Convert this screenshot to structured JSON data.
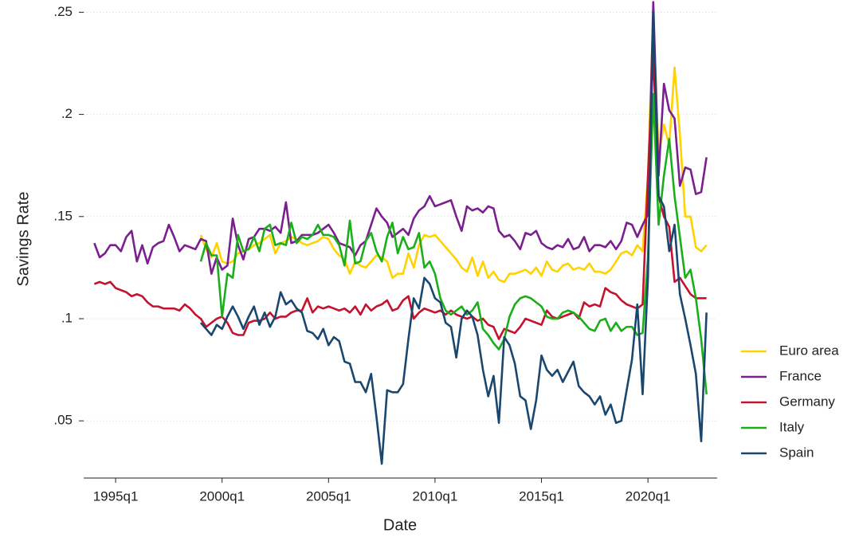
{
  "chart_data": {
    "type": "line",
    "y_label": "Savings Rate",
    "x_label": "Date",
    "x": [
      "1994q1",
      "1994q2",
      "1994q3",
      "1994q4",
      "1995q1",
      "1995q2",
      "1995q3",
      "1995q4",
      "1996q1",
      "1996q2",
      "1996q3",
      "1996q4",
      "1997q1",
      "1997q2",
      "1997q3",
      "1997q4",
      "1998q1",
      "1998q2",
      "1998q3",
      "1998q4",
      "1999q1",
      "1999q2",
      "1999q3",
      "1999q4",
      "2000q1",
      "2000q2",
      "2000q3",
      "2000q4",
      "2001q1",
      "2001q2",
      "2001q3",
      "2001q4",
      "2002q1",
      "2002q2",
      "2002q3",
      "2002q4",
      "2003q1",
      "2003q2",
      "2003q3",
      "2003q4",
      "2004q1",
      "2004q2",
      "2004q3",
      "2004q4",
      "2005q1",
      "2005q2",
      "2005q3",
      "2005q4",
      "2006q1",
      "2006q2",
      "2006q3",
      "2006q4",
      "2007q1",
      "2007q2",
      "2007q3",
      "2007q4",
      "2008q1",
      "2008q2",
      "2008q3",
      "2008q4",
      "2009q1",
      "2009q2",
      "2009q3",
      "2009q4",
      "2010q1",
      "2010q2",
      "2010q3",
      "2010q4",
      "2011q1",
      "2011q2",
      "2011q3",
      "2011q4",
      "2012q1",
      "2012q2",
      "2012q3",
      "2012q4",
      "2013q1",
      "2013q2",
      "2013q3",
      "2013q4",
      "2014q1",
      "2014q2",
      "2014q3",
      "2014q4",
      "2015q1",
      "2015q2",
      "2015q3",
      "2015q4",
      "2016q1",
      "2016q2",
      "2016q3",
      "2016q4",
      "2017q1",
      "2017q2",
      "2017q3",
      "2017q4",
      "2018q1",
      "2018q2",
      "2018q3",
      "2018q4",
      "2019q1",
      "2019q2",
      "2019q3",
      "2019q4",
      "2020q1",
      "2020q2",
      "2020q3",
      "2020q4",
      "2021q1",
      "2021q2",
      "2021q3",
      "2021q4",
      "2022q1",
      "2022q2",
      "2022q3",
      "2022q4"
    ],
    "series": [
      {
        "name": "Euro area",
        "color": "#ffd200",
        "values": [
          null,
          null,
          null,
          null,
          null,
          null,
          null,
          null,
          null,
          null,
          null,
          null,
          null,
          null,
          null,
          null,
          null,
          null,
          null,
          null,
          0.141,
          0.134,
          0.13,
          0.137,
          0.128,
          0.127,
          0.128,
          0.132,
          0.133,
          0.134,
          0.136,
          0.137,
          0.139,
          0.141,
          0.132,
          0.137,
          0.138,
          0.14,
          0.139,
          0.137,
          0.136,
          0.137,
          0.138,
          0.14,
          0.139,
          0.134,
          0.131,
          0.129,
          0.122,
          0.128,
          0.126,
          0.125,
          0.128,
          0.131,
          0.13,
          0.128,
          0.12,
          0.122,
          0.122,
          0.132,
          0.125,
          0.136,
          0.141,
          0.14,
          0.141,
          0.138,
          0.135,
          0.132,
          0.129,
          0.125,
          0.123,
          0.13,
          0.121,
          0.128,
          0.12,
          0.123,
          0.119,
          0.118,
          0.122,
          0.122,
          0.123,
          0.124,
          0.122,
          0.125,
          0.121,
          0.128,
          0.124,
          0.123,
          0.126,
          0.127,
          0.124,
          0.125,
          0.124,
          0.127,
          0.123,
          0.123,
          0.122,
          0.124,
          0.128,
          0.132,
          0.133,
          0.131,
          0.136,
          0.133,
          0.17,
          0.25,
          0.18,
          0.195,
          0.185,
          0.223,
          0.19,
          0.15,
          0.15,
          0.135,
          0.133,
          0.136
        ]
      },
      {
        "name": "France",
        "color": "#7b1e8e",
        "values": [
          0.137,
          0.13,
          0.132,
          0.136,
          0.136,
          0.133,
          0.14,
          0.143,
          0.128,
          0.136,
          0.127,
          0.135,
          0.137,
          0.138,
          0.146,
          0.14,
          0.133,
          0.136,
          0.135,
          0.134,
          0.139,
          0.138,
          0.122,
          0.13,
          0.124,
          0.126,
          0.149,
          0.136,
          0.129,
          0.139,
          0.14,
          0.144,
          0.144,
          0.143,
          0.145,
          0.142,
          0.157,
          0.137,
          0.138,
          0.141,
          0.141,
          0.141,
          0.142,
          0.144,
          0.146,
          0.142,
          0.137,
          0.136,
          0.135,
          0.131,
          0.136,
          0.138,
          0.146,
          0.154,
          0.15,
          0.147,
          0.14,
          0.142,
          0.144,
          0.141,
          0.149,
          0.153,
          0.155,
          0.16,
          0.155,
          0.156,
          0.157,
          0.158,
          0.15,
          0.143,
          0.155,
          0.153,
          0.154,
          0.152,
          0.155,
          0.154,
          0.143,
          0.14,
          0.141,
          0.138,
          0.134,
          0.142,
          0.141,
          0.143,
          0.137,
          0.135,
          0.134,
          0.136,
          0.135,
          0.139,
          0.134,
          0.135,
          0.14,
          0.133,
          0.136,
          0.136,
          0.135,
          0.138,
          0.134,
          0.138,
          0.147,
          0.146,
          0.14,
          0.146,
          0.151,
          0.255,
          0.17,
          0.215,
          0.202,
          0.198,
          0.165,
          0.174,
          0.173,
          0.161,
          0.162,
          0.179
        ]
      },
      {
        "name": "Germany",
        "color": "#c4122f",
        "values": [
          0.117,
          0.118,
          0.117,
          0.118,
          0.115,
          0.114,
          0.113,
          0.111,
          0.112,
          0.111,
          0.108,
          0.106,
          0.106,
          0.105,
          0.105,
          0.105,
          0.104,
          0.107,
          0.105,
          0.102,
          0.1,
          0.096,
          0.098,
          0.1,
          0.101,
          0.098,
          0.093,
          0.092,
          0.092,
          0.098,
          0.099,
          0.099,
          0.1,
          0.103,
          0.1,
          0.101,
          0.101,
          0.103,
          0.104,
          0.104,
          0.11,
          0.103,
          0.106,
          0.105,
          0.106,
          0.105,
          0.104,
          0.105,
          0.103,
          0.106,
          0.102,
          0.107,
          0.104,
          0.106,
          0.107,
          0.109,
          0.104,
          0.105,
          0.109,
          0.111,
          0.1,
          0.103,
          0.105,
          0.104,
          0.103,
          0.104,
          0.102,
          0.104,
          0.102,
          0.101,
          0.1,
          0.101,
          0.099,
          0.1,
          0.097,
          0.096,
          0.09,
          0.095,
          0.094,
          0.093,
          0.096,
          0.1,
          0.099,
          0.098,
          0.097,
          0.104,
          0.101,
          0.1,
          0.101,
          0.102,
          0.103,
          0.1,
          0.108,
          0.106,
          0.107,
          0.106,
          0.115,
          0.113,
          0.112,
          0.109,
          0.107,
          0.106,
          0.105,
          0.107,
          0.17,
          0.23,
          0.16,
          0.15,
          0.145,
          0.118,
          0.12,
          0.116,
          0.112,
          0.11,
          0.11,
          0.11
        ]
      },
      {
        "name": "Italy",
        "color": "#1aaf1a",
        "values": [
          null,
          null,
          null,
          null,
          null,
          null,
          null,
          null,
          null,
          null,
          null,
          null,
          null,
          null,
          null,
          null,
          null,
          null,
          null,
          null,
          0.128,
          0.137,
          0.131,
          0.131,
          0.101,
          0.122,
          0.12,
          0.141,
          0.133,
          0.134,
          0.14,
          0.133,
          0.144,
          0.146,
          0.136,
          0.137,
          0.136,
          0.147,
          0.137,
          0.14,
          0.139,
          0.141,
          0.146,
          0.141,
          0.141,
          0.14,
          0.136,
          0.126,
          0.148,
          0.127,
          0.128,
          0.138,
          0.142,
          0.133,
          0.128,
          0.14,
          0.147,
          0.132,
          0.14,
          0.134,
          0.135,
          0.142,
          0.125,
          0.128,
          0.122,
          0.11,
          0.104,
          0.102,
          0.104,
          0.106,
          0.102,
          0.104,
          0.108,
          0.095,
          0.092,
          0.088,
          0.085,
          0.09,
          0.101,
          0.107,
          0.11,
          0.111,
          0.11,
          0.108,
          0.106,
          0.101,
          0.1,
          0.1,
          0.103,
          0.104,
          0.103,
          0.101,
          0.098,
          0.095,
          0.094,
          0.099,
          0.1,
          0.094,
          0.098,
          0.094,
          0.096,
          0.096,
          0.092,
          0.093,
          0.13,
          0.21,
          0.146,
          0.17,
          0.188,
          0.16,
          0.14,
          0.12,
          0.124,
          0.11,
          0.09,
          0.063
        ]
      },
      {
        "name": "Spain",
        "color": "#1a476f",
        "values": [
          null,
          null,
          null,
          null,
          null,
          null,
          null,
          null,
          null,
          null,
          null,
          null,
          null,
          null,
          null,
          null,
          null,
          null,
          null,
          null,
          0.098,
          0.095,
          0.092,
          0.097,
          0.095,
          0.101,
          0.106,
          0.101,
          0.095,
          0.101,
          0.106,
          0.097,
          0.103,
          0.096,
          0.101,
          0.113,
          0.107,
          0.109,
          0.105,
          0.103,
          0.094,
          0.093,
          0.09,
          0.095,
          0.087,
          0.091,
          0.089,
          0.079,
          0.078,
          0.069,
          0.069,
          0.064,
          0.073,
          0.052,
          0.029,
          0.065,
          0.064,
          0.064,
          0.068,
          0.09,
          0.11,
          0.105,
          0.12,
          0.117,
          0.11,
          0.108,
          0.098,
          0.096,
          0.081,
          0.1,
          0.104,
          0.101,
          0.092,
          0.075,
          0.062,
          0.072,
          0.049,
          0.091,
          0.087,
          0.078,
          0.062,
          0.06,
          0.046,
          0.06,
          0.082,
          0.075,
          0.072,
          0.075,
          0.069,
          0.074,
          0.079,
          0.067,
          0.064,
          0.062,
          0.058,
          0.062,
          0.053,
          0.058,
          0.049,
          0.05,
          0.065,
          0.08,
          0.107,
          0.063,
          0.12,
          0.25,
          0.16,
          0.155,
          0.133,
          0.146,
          0.112,
          0.1,
          0.087,
          0.073,
          0.04,
          0.103
        ]
      }
    ],
    "xlim": [
      "1993q3",
      "2023q2"
    ],
    "xticks": [
      "1995q1",
      "2000q1",
      "2005q1",
      "2010q1",
      "2015q1",
      "2020q1"
    ],
    "ylim": [
      0.022,
      0.256
    ],
    "yticks": [
      {
        "value": 0.05,
        "label": ".05"
      },
      {
        "value": 0.1,
        "label": ".1"
      },
      {
        "value": 0.15,
        "label": ".15"
      },
      {
        "value": 0.2,
        "label": ".2"
      },
      {
        "value": 0.25,
        "label": ".25"
      }
    ],
    "grid": true,
    "legend": "right"
  }
}
